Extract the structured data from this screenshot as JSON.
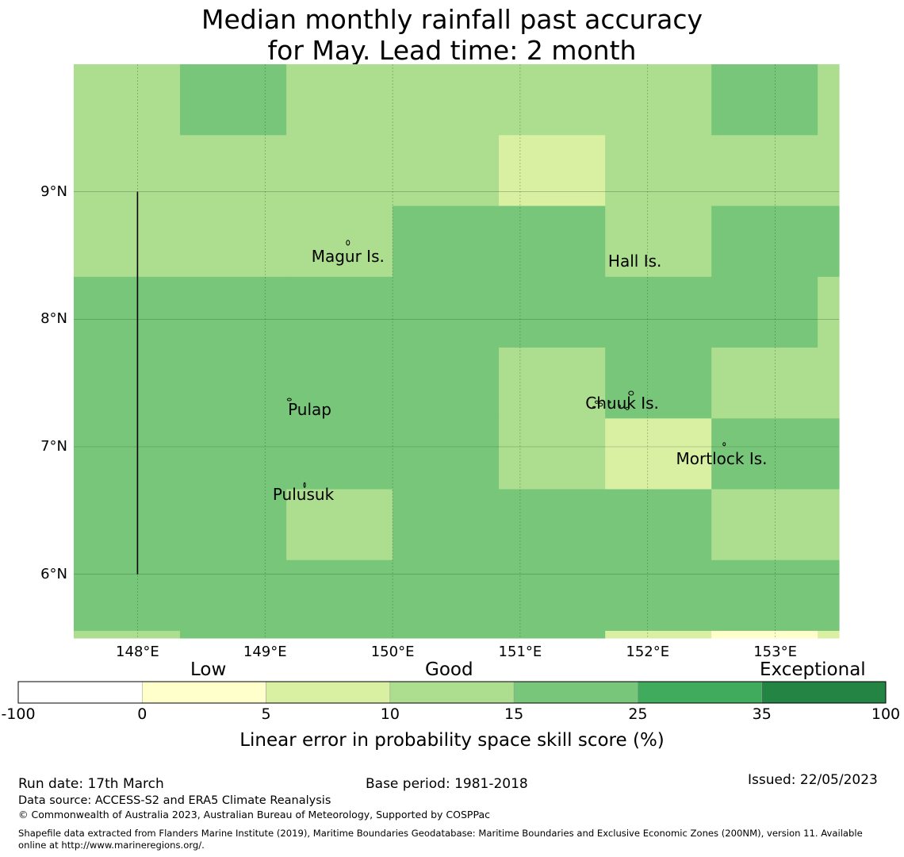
{
  "title": {
    "line1": "Median monthly rainfall past accuracy",
    "line2": "for May. Lead time: 2 month"
  },
  "map": {
    "lon_range": [
      147.5,
      153.5
    ],
    "lat_range": [
      5.5,
      10.0
    ],
    "lon_ticks": [
      148,
      149,
      150,
      151,
      152,
      153
    ],
    "lon_tick_labels": [
      "148°E",
      "149°E",
      "150°E",
      "151°E",
      "152°E",
      "153°E"
    ],
    "lat_ticks": [
      9,
      8,
      7,
      6
    ],
    "lat_tick_labels": [
      "9°N",
      "8°N",
      "7°N",
      "6°N"
    ],
    "grid_cols": [
      147.5,
      148.333,
      149.167,
      150.0,
      150.833,
      151.667,
      152.5,
      153.333,
      153.5
    ],
    "grid_rows": [
      10.0,
      9.444,
      8.889,
      8.333,
      7.778,
      7.222,
      6.667,
      6.111,
      5.556,
      5.5
    ],
    "grid_classes": [
      [
        3,
        4,
        3,
        3,
        3,
        3,
        4,
        3
      ],
      [
        3,
        3,
        3,
        3,
        2,
        3,
        3,
        3
      ],
      [
        3,
        3,
        3,
        4,
        4,
        3,
        4,
        4
      ],
      [
        4,
        4,
        4,
        4,
        4,
        4,
        4,
        3
      ],
      [
        4,
        4,
        4,
        4,
        3,
        4,
        3,
        3
      ],
      [
        4,
        4,
        4,
        4,
        3,
        2,
        4,
        4
      ],
      [
        4,
        4,
        3,
        4,
        4,
        4,
        3,
        3
      ],
      [
        4,
        4,
        4,
        4,
        4,
        4,
        4,
        4
      ],
      [
        3,
        4,
        4,
        4,
        4,
        2,
        1,
        2
      ]
    ],
    "meridian_line": {
      "lon": 148.0,
      "lat_from": 6.0,
      "lat_to": 9.0
    },
    "places": [
      {
        "name": "Magur Is.",
        "lon": 149.65,
        "lat": 8.57
      },
      {
        "name": "Hall Is.",
        "lon": 151.9,
        "lat": 8.53
      },
      {
        "name": "Pulap",
        "lon": 149.35,
        "lat": 7.37
      },
      {
        "name": "Chuuk Is.",
        "lon": 151.8,
        "lat": 7.42
      },
      {
        "name": "Mortlock Is.",
        "lon": 152.58,
        "lat": 6.98
      },
      {
        "name": "Pulusuk",
        "lon": 149.3,
        "lat": 6.7
      }
    ]
  },
  "colorbar": {
    "category_labels": [
      "Low",
      "Good",
      "Exceptional"
    ],
    "tick_labels": [
      "-100",
      "0",
      "5",
      "10",
      "15",
      "25",
      "35",
      "100"
    ],
    "colors": [
      "#ffffff",
      "#ffffcc",
      "#d9f0a3",
      "#addd8e",
      "#78c679",
      "#41ab5d",
      "#238443"
    ],
    "axis_label": "Linear error in probability space skill score (%)"
  },
  "footer": {
    "run_date": "Run date: 17th March",
    "base_period": "Base period: 1981-2018",
    "issued": "Issued: 22/05/2023",
    "data_source": "Data source: ACCESS-S2 and ERA5 Climate Reanalysis",
    "copyright": "© Commonwealth of Australia 2023, Australian Bureau of Meteorology, Supported by COSPPac",
    "shapefile_line1": "Shapefile data extracted from Flanders Marine Institute (2019), Maritime Boundaries Geodatabase: Maritime Boundaries and Exclusive Economic Zones (200NM), version 11. Available",
    "shapefile_line2": "online at http://www.marineregions.org/."
  }
}
